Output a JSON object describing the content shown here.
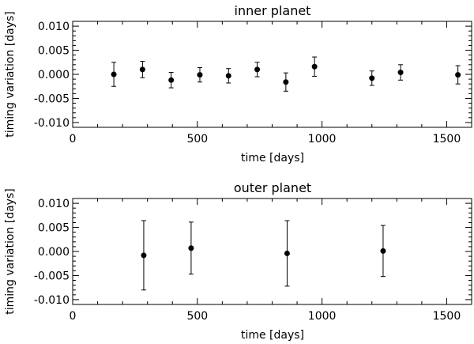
{
  "chart_data": [
    {
      "type": "scatter",
      "title": "inner planet",
      "xlabel": "time [days]",
      "ylabel": "timing variation [days]",
      "xlim": [
        0,
        1600
      ],
      "ylim": [
        -0.011,
        0.011
      ],
      "xticks": [
        0,
        500,
        1000,
        1500
      ],
      "xtick_labels": [
        "0",
        "500",
        "1000",
        "1500"
      ],
      "yticks": [
        -0.01,
        -0.005,
        0.0,
        0.005,
        0.01
      ],
      "ytick_labels": [
        "-0.010",
        "-0.005",
        "0.000",
        "0.005",
        "0.010"
      ],
      "points": [
        {
          "x": 165,
          "y": 0.0,
          "err": 0.0025
        },
        {
          "x": 280,
          "y": 0.001,
          "err": 0.0017
        },
        {
          "x": 395,
          "y": -0.0012,
          "err": 0.0016
        },
        {
          "x": 510,
          "y": -0.0001,
          "err": 0.0015
        },
        {
          "x": 625,
          "y": -0.0003,
          "err": 0.0015
        },
        {
          "x": 740,
          "y": 0.001,
          "err": 0.0015
        },
        {
          "x": 855,
          "y": -0.0016,
          "err": 0.0019
        },
        {
          "x": 970,
          "y": 0.0016,
          "err": 0.002
        },
        {
          "x": 1200,
          "y": -0.0008,
          "err": 0.0015
        },
        {
          "x": 1315,
          "y": 0.0004,
          "err": 0.0016
        },
        {
          "x": 1545,
          "y": -0.0001,
          "err": 0.0019
        }
      ],
      "grid": false
    },
    {
      "type": "scatter",
      "title": "outer planet",
      "xlabel": "time [days]",
      "ylabel": "timing variation [days]",
      "xlim": [
        0,
        1600
      ],
      "ylim": [
        -0.011,
        0.011
      ],
      "xticks": [
        0,
        500,
        1000,
        1500
      ],
      "xtick_labels": [
        "0",
        "500",
        "1000",
        "1500"
      ],
      "yticks": [
        -0.01,
        -0.005,
        0.0,
        0.005,
        0.01
      ],
      "ytick_labels": [
        "-0.010",
        "-0.005",
        "0.000",
        "0.005",
        "0.010"
      ],
      "points": [
        {
          "x": 285,
          "y": -0.0008,
          "err": 0.0072
        },
        {
          "x": 475,
          "y": 0.0007,
          "err": 0.0054
        },
        {
          "x": 860,
          "y": -0.0004,
          "err": 0.0068
        },
        {
          "x": 1245,
          "y": 0.0001,
          "err": 0.0053
        }
      ],
      "grid": false
    }
  ]
}
